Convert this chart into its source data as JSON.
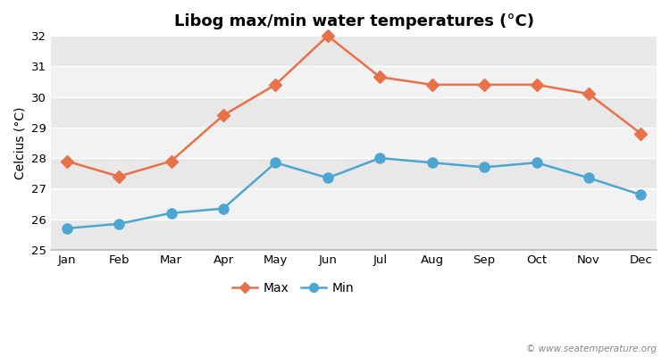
{
  "title": "Libog max/min water temperatures (°C)",
  "ylabel": "Celcius (°C)",
  "months": [
    "Jan",
    "Feb",
    "Mar",
    "Apr",
    "May",
    "Jun",
    "Jul",
    "Aug",
    "Sep",
    "Oct",
    "Nov",
    "Dec"
  ],
  "max_temps": [
    27.9,
    27.4,
    27.9,
    29.4,
    30.4,
    32.0,
    30.65,
    30.4,
    30.4,
    30.4,
    30.1,
    28.8
  ],
  "min_temps": [
    25.7,
    25.85,
    26.2,
    26.35,
    27.85,
    27.35,
    28.0,
    27.85,
    27.7,
    27.85,
    27.35,
    26.8
  ],
  "max_color": "#e8714a",
  "min_color": "#4da6d1",
  "fig_bg_color": "#ffffff",
  "band_light": "#f2f2f2",
  "band_dark": "#e8e8e8",
  "ylim": [
    25,
    32
  ],
  "yticks": [
    25,
    26,
    27,
    28,
    29,
    30,
    31,
    32
  ],
  "grid_color": "#ffffff",
  "watermark": "© www.seatemperature.org",
  "marker_size_max": 7,
  "marker_size_min": 9,
  "line_width": 1.8
}
